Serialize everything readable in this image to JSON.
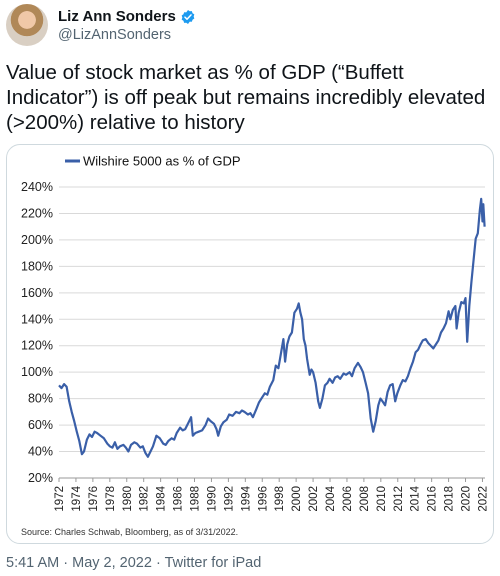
{
  "author": {
    "display_name": "Liz Ann Sonders",
    "handle": "@LizAnnSonders",
    "verified": true,
    "verified_color": "#1d9bf0"
  },
  "tweet": {
    "text": "Value of stock market as % of GDP (“Buffett Indicator”) is off peak but remains incredibly elevated (>200%) relative to history"
  },
  "meta": {
    "time": "5:41 AM",
    "date": "May 2, 2022",
    "source": "Twitter for iPad",
    "separator": "·"
  },
  "chart_data": {
    "type": "line",
    "title": "",
    "xlabel": "",
    "ylabel": "",
    "source_note": "Source: Charles Schwab, Bloomberg, as of 3/31/2022.",
    "ylim": [
      20,
      240
    ],
    "xlim": [
      1972,
      2022.3
    ],
    "y_ticks": [
      "20%",
      "40%",
      "60%",
      "80%",
      "100%",
      "120%",
      "140%",
      "160%",
      "180%",
      "200%",
      "220%",
      "240%"
    ],
    "x_ticks": [
      "1972",
      "1974",
      "1976",
      "1978",
      "1980",
      "1982",
      "1984",
      "1986",
      "1988",
      "1990",
      "1992",
      "1994",
      "1996",
      "1998",
      "2000",
      "2002",
      "2004",
      "2006",
      "2008",
      "2010",
      "2012",
      "2014",
      "2016",
      "2018",
      "2020",
      "2022"
    ],
    "grid": true,
    "legend_position": "top-left",
    "series": [
      {
        "name": "Wilshire 5000 as % of GDP",
        "color": "#3a5fa8",
        "points": [
          [
            1972.0,
            90
          ],
          [
            1972.3,
            88
          ],
          [
            1972.6,
            91
          ],
          [
            1972.9,
            89
          ],
          [
            1973.2,
            78
          ],
          [
            1973.5,
            70
          ],
          [
            1973.8,
            63
          ],
          [
            1974.1,
            55
          ],
          [
            1974.4,
            48
          ],
          [
            1974.7,
            38
          ],
          [
            1974.95,
            40
          ],
          [
            1975.3,
            49
          ],
          [
            1975.6,
            53
          ],
          [
            1975.9,
            51
          ],
          [
            1976.2,
            55
          ],
          [
            1976.5,
            54
          ],
          [
            1976.9,
            52
          ],
          [
            1977.3,
            50
          ],
          [
            1977.7,
            46
          ],
          [
            1978.0,
            44
          ],
          [
            1978.3,
            43
          ],
          [
            1978.6,
            47
          ],
          [
            1978.9,
            42
          ],
          [
            1979.2,
            44
          ],
          [
            1979.6,
            45
          ],
          [
            1979.9,
            43
          ],
          [
            1980.2,
            40
          ],
          [
            1980.5,
            45
          ],
          [
            1980.9,
            47
          ],
          [
            1981.2,
            46
          ],
          [
            1981.6,
            43
          ],
          [
            1981.9,
            44
          ],
          [
            1982.2,
            39
          ],
          [
            1982.5,
            36
          ],
          [
            1982.8,
            40
          ],
          [
            1983.1,
            44
          ],
          [
            1983.5,
            52
          ],
          [
            1983.9,
            50
          ],
          [
            1984.3,
            46
          ],
          [
            1984.6,
            45
          ],
          [
            1984.9,
            48
          ],
          [
            1985.3,
            50
          ],
          [
            1985.6,
            49
          ],
          [
            1985.9,
            54
          ],
          [
            1986.3,
            58
          ],
          [
            1986.6,
            56
          ],
          [
            1986.9,
            57
          ],
          [
            1987.3,
            62
          ],
          [
            1987.6,
            66
          ],
          [
            1987.8,
            52
          ],
          [
            1988.1,
            54
          ],
          [
            1988.5,
            55
          ],
          [
            1988.9,
            56
          ],
          [
            1989.3,
            60
          ],
          [
            1989.6,
            65
          ],
          [
            1989.9,
            63
          ],
          [
            1990.3,
            61
          ],
          [
            1990.6,
            57
          ],
          [
            1990.8,
            52
          ],
          [
            1991.1,
            59
          ],
          [
            1991.4,
            62
          ],
          [
            1991.8,
            64
          ],
          [
            1992.1,
            68
          ],
          [
            1992.5,
            67
          ],
          [
            1992.9,
            70
          ],
          [
            1993.3,
            69
          ],
          [
            1993.6,
            71
          ],
          [
            1993.9,
            70
          ],
          [
            1994.3,
            68
          ],
          [
            1994.6,
            69
          ],
          [
            1994.9,
            66
          ],
          [
            1995.3,
            72
          ],
          [
            1995.6,
            77
          ],
          [
            1995.9,
            80
          ],
          [
            1996.3,
            84
          ],
          [
            1996.6,
            83
          ],
          [
            1996.9,
            89
          ],
          [
            1997.3,
            94
          ],
          [
            1997.6,
            105
          ],
          [
            1997.9,
            103
          ],
          [
            1998.2,
            114
          ],
          [
            1998.5,
            125
          ],
          [
            1998.7,
            108
          ],
          [
            1998.95,
            121
          ],
          [
            1999.2,
            127
          ],
          [
            1999.5,
            130
          ],
          [
            1999.8,
            145
          ],
          [
            2000.1,
            148
          ],
          [
            2000.3,
            152
          ],
          [
            2000.5,
            145
          ],
          [
            2000.7,
            140
          ],
          [
            2000.9,
            125
          ],
          [
            2001.1,
            120
          ],
          [
            2001.3,
            110
          ],
          [
            2001.6,
            98
          ],
          [
            2001.8,
            102
          ],
          [
            2002.0,
            100
          ],
          [
            2002.3,
            92
          ],
          [
            2002.6,
            78
          ],
          [
            2002.8,
            73
          ],
          [
            2003.1,
            80
          ],
          [
            2003.4,
            90
          ],
          [
            2003.7,
            92
          ],
          [
            2003.95,
            95
          ],
          [
            2004.3,
            92
          ],
          [
            2004.6,
            96
          ],
          [
            2004.9,
            97
          ],
          [
            2005.2,
            95
          ],
          [
            2005.6,
            99
          ],
          [
            2005.9,
            98
          ],
          [
            2006.3,
            100
          ],
          [
            2006.6,
            97
          ],
          [
            2006.9,
            103
          ],
          [
            2007.3,
            107
          ],
          [
            2007.6,
            104
          ],
          [
            2007.9,
            100
          ],
          [
            2008.2,
            92
          ],
          [
            2008.5,
            84
          ],
          [
            2008.8,
            65
          ],
          [
            2009.1,
            55
          ],
          [
            2009.4,
            63
          ],
          [
            2009.7,
            75
          ],
          [
            2009.95,
            80
          ],
          [
            2010.2,
            78
          ],
          [
            2010.5,
            75
          ],
          [
            2010.8,
            85
          ],
          [
            2011.1,
            90
          ],
          [
            2011.4,
            91
          ],
          [
            2011.7,
            78
          ],
          [
            2011.95,
            84
          ],
          [
            2012.3,
            90
          ],
          [
            2012.6,
            94
          ],
          [
            2012.9,
            93
          ],
          [
            2013.2,
            97
          ],
          [
            2013.5,
            103
          ],
          [
            2013.8,
            108
          ],
          [
            2014.1,
            115
          ],
          [
            2014.4,
            117
          ],
          [
            2014.7,
            121
          ],
          [
            2014.95,
            124
          ],
          [
            2015.3,
            125
          ],
          [
            2015.6,
            122
          ],
          [
            2015.9,
            120
          ],
          [
            2016.2,
            118
          ],
          [
            2016.5,
            121
          ],
          [
            2016.8,
            124
          ],
          [
            2017.1,
            130
          ],
          [
            2017.4,
            133
          ],
          [
            2017.7,
            137
          ],
          [
            2018.0,
            146
          ],
          [
            2018.2,
            140
          ],
          [
            2018.5,
            147
          ],
          [
            2018.8,
            150
          ],
          [
            2018.95,
            133
          ],
          [
            2019.2,
            145
          ],
          [
            2019.5,
            153
          ],
          [
            2019.8,
            152
          ],
          [
            2020.0,
            156
          ],
          [
            2020.2,
            123
          ],
          [
            2020.45,
            150
          ],
          [
            2020.7,
            168
          ],
          [
            2020.95,
            185
          ],
          [
            2021.2,
            201
          ],
          [
            2021.45,
            205
          ],
          [
            2021.7,
            223
          ],
          [
            2021.85,
            231
          ],
          [
            2022.0,
            214
          ],
          [
            2022.1,
            227
          ],
          [
            2022.25,
            210
          ]
        ]
      }
    ]
  }
}
